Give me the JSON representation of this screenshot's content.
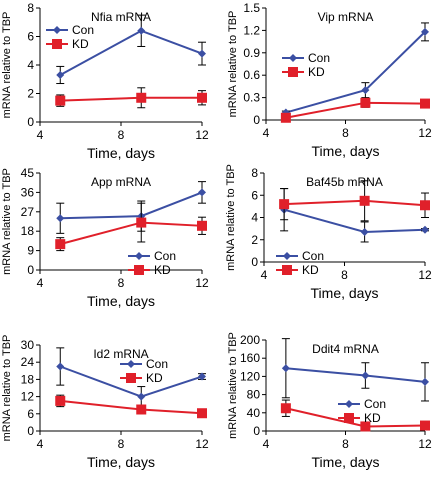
{
  "colors": {
    "con": "#3b4fa3",
    "kd": "#e0202a"
  },
  "shared": {
    "xlabel": "Time, days",
    "ylabel": "mRNA relative to TBP"
  },
  "chart_data": [
    {
      "type": "line",
      "title": "Nfia mRNA",
      "x": [
        5,
        9,
        12
      ],
      "xlim": [
        4,
        12
      ],
      "xticks": [
        4,
        8,
        12
      ],
      "ylim": [
        0,
        8
      ],
      "yticks": [
        0,
        2,
        4,
        6,
        8
      ],
      "xlabel": "Time, days",
      "ylabel": "mRNA relative to TBP",
      "legend": "top-left",
      "series": [
        {
          "name": "Con",
          "marker": "diamond",
          "values": [
            3.3,
            6.4,
            4.8
          ],
          "errors": [
            0.6,
            1.1,
            0.8
          ]
        },
        {
          "name": "KD",
          "marker": "square",
          "values": [
            1.5,
            1.7,
            1.7
          ],
          "errors": [
            0.4,
            0.7,
            0.5
          ]
        }
      ]
    },
    {
      "type": "line",
      "title": "Vip mRNA",
      "x": [
        5,
        9,
        12
      ],
      "xlim": [
        4,
        12
      ],
      "xticks": [
        4,
        8,
        12
      ],
      "ylim": [
        0,
        1.5
      ],
      "yticks": [
        0,
        0.3,
        0.6,
        0.9,
        1.2,
        1.5
      ],
      "xlabel": "Time, days",
      "ylabel": "mRNA relative to TBP",
      "legend": "center-left",
      "series": [
        {
          "name": "Con",
          "marker": "diamond",
          "values": [
            0.1,
            0.4,
            1.18
          ],
          "errors": [
            0.02,
            0.1,
            0.12
          ]
        },
        {
          "name": "KD",
          "marker": "square",
          "values": [
            0.03,
            0.23,
            0.22
          ],
          "errors": [
            0.02,
            0.06,
            0.04
          ]
        }
      ]
    },
    {
      "type": "line",
      "title": "App mRNA",
      "x": [
        5,
        9,
        12
      ],
      "xlim": [
        4,
        12
      ],
      "xticks": [
        4,
        8,
        12
      ],
      "ylim": [
        0,
        45
      ],
      "yticks": [
        0,
        9,
        18,
        27,
        36,
        45
      ],
      "xlabel": "Time, days",
      "ylabel": "mRNA relative to TBP",
      "legend": "bottom-right",
      "series": [
        {
          "name": "Con",
          "marker": "diamond",
          "values": [
            24,
            25,
            36
          ],
          "errors": [
            7,
            7,
            5
          ]
        },
        {
          "name": "KD",
          "marker": "square",
          "values": [
            12,
            22,
            20.5
          ],
          "errors": [
            3,
            9,
            4
          ]
        }
      ]
    },
    {
      "type": "line",
      "title": "Baf45b mRNA",
      "x": [
        5,
        9,
        12
      ],
      "xlim": [
        4,
        12
      ],
      "xticks": [
        4,
        8,
        12
      ],
      "ylim": [
        0,
        8
      ],
      "yticks": [
        0,
        2,
        4,
        6,
        8
      ],
      "xlabel": "Time, days",
      "ylabel": "mRNA relative to TBP",
      "legend": "bottom-center",
      "series": [
        {
          "name": "Con",
          "marker": "diamond",
          "values": [
            4.7,
            2.7,
            2.9
          ],
          "errors": [
            1.9,
            0.9,
            0.1
          ]
        },
        {
          "name": "KD",
          "marker": "square",
          "values": [
            5.2,
            5.5,
            5.1
          ],
          "errors": [
            1.4,
            1.8,
            1.1
          ]
        }
      ]
    },
    {
      "type": "line",
      "title": "Id2 mRNA",
      "x": [
        5,
        9,
        12
      ],
      "xlim": [
        4,
        12
      ],
      "xticks": [
        4,
        8,
        12
      ],
      "ylim": [
        0,
        30
      ],
      "yticks": [
        0,
        6,
        12,
        18,
        24,
        30
      ],
      "xlabel": "Time, days",
      "ylabel": "mRNA relative to TBP",
      "legend": "top-right",
      "series": [
        {
          "name": "Con",
          "marker": "diamond",
          "values": [
            22.5,
            12,
            19
          ],
          "errors": [
            6.5,
            3.5,
            1
          ]
        },
        {
          "name": "KD",
          "marker": "square",
          "values": [
            10.5,
            7.5,
            6.2
          ],
          "errors": [
            2,
            1,
            0.5
          ]
        }
      ]
    },
    {
      "type": "line",
      "title": "Ddit4 mRNA",
      "x": [
        5,
        9,
        12
      ],
      "xlim": [
        4,
        12
      ],
      "xticks": [
        4,
        8,
        12
      ],
      "ylim": [
        0,
        200
      ],
      "yticks": [
        0,
        40,
        80,
        120,
        160,
        200
      ],
      "xlabel": "Time, days",
      "ylabel": "mRNA relative to TBP",
      "legend": "center-right",
      "series": [
        {
          "name": "Con",
          "marker": "diamond",
          "values": [
            138,
            122,
            108
          ],
          "errors": [
            65,
            28,
            42
          ]
        },
        {
          "name": "KD",
          "marker": "square",
          "values": [
            50,
            10,
            12
          ],
          "errors": [
            18,
            3,
            3
          ]
        }
      ]
    }
  ]
}
